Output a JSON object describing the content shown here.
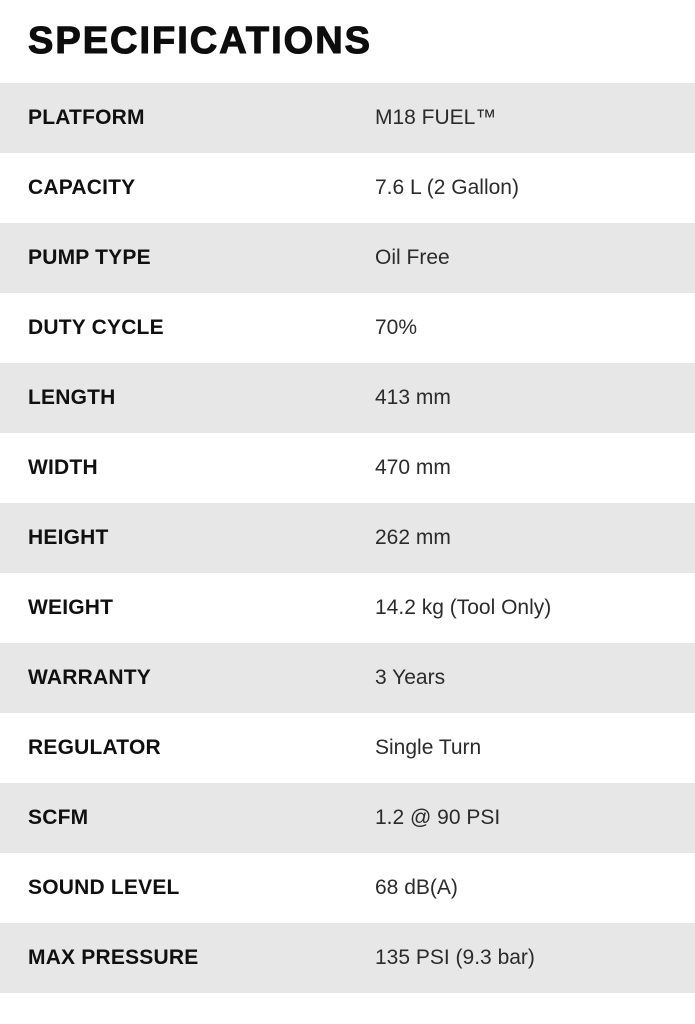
{
  "page": {
    "title": "SPECIFICATIONS"
  },
  "colors": {
    "background": "#ffffff",
    "row_alt_bg": "#e7e7e7",
    "title_text": "#0d0d0d",
    "label_text": "#101010",
    "value_text": "#2b2b2b"
  },
  "spec_table": {
    "rows": [
      {
        "label": "PLATFORM",
        "value": "M18 FUEL™"
      },
      {
        "label": "CAPACITY",
        "value": "7.6 L (2 Gallon)"
      },
      {
        "label": "PUMP TYPE",
        "value": "Oil Free"
      },
      {
        "label": "DUTY CYCLE",
        "value": "70%"
      },
      {
        "label": "LENGTH",
        "value": "413 mm"
      },
      {
        "label": "WIDTH",
        "value": "470 mm"
      },
      {
        "label": "HEIGHT",
        "value": "262 mm"
      },
      {
        "label": "WEIGHT",
        "value": "14.2 kg (Tool Only)"
      },
      {
        "label": "WARRANTY",
        "value": "3 Years"
      },
      {
        "label": "REGULATOR",
        "value": "Single Turn"
      },
      {
        "label": "SCFM",
        "value": "1.2 @ 90 PSI"
      },
      {
        "label": "SOUND LEVEL",
        "value": "68 dB(A)"
      },
      {
        "label": "MAX PRESSURE",
        "value": "135 PSI (9.3 bar)"
      }
    ]
  }
}
